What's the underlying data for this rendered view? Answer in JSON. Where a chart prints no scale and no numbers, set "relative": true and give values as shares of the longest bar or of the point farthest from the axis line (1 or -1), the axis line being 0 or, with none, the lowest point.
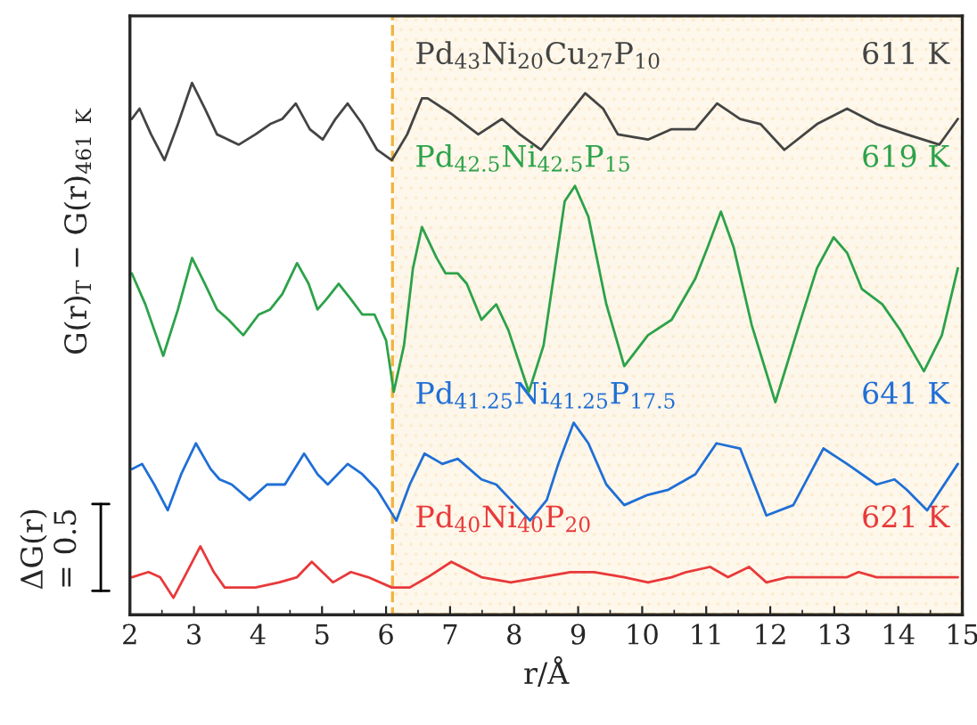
{
  "chart_data": {
    "type": "line",
    "relative": true,
    "xlabel": "r/Å",
    "ylabel": "G(r)$_{T}$ − G(r)$_{461 K}$",
    "xlim": [
      2,
      15
    ],
    "xticks": [
      2,
      3,
      4,
      5,
      6,
      7,
      8,
      9,
      10,
      11,
      12,
      13,
      14,
      15
    ],
    "tick_labels": "x",
    "grid": false,
    "legend": false,
    "marker": "none",
    "line_style": "solid",
    "bands": [
      {
        "axis": "x",
        "from": 6.1,
        "to": 15,
        "color": "#f2b33d"
      }
    ],
    "annotations": [
      "611 K",
      "619 K",
      "641 K",
      "621 K",
      "ΔG(r)\n= 0.5"
    ],
    "series": [
      {
        "name": "Pd$_{43}$Ni$_{20}$Cu$_{27}$P$_{10}$",
        "color": "#444444",
        "x": [
          2.03,
          2.15,
          2.33,
          2.54,
          2.75,
          2.97,
          3.17,
          3.36,
          3.7,
          3.96,
          4.19,
          4.38,
          4.59,
          4.81,
          5.01,
          5.21,
          5.4,
          5.63,
          5.86,
          6.09,
          6.33,
          6.56,
          6.65,
          7.02,
          7.44,
          7.81,
          8.09,
          8.42,
          8.79,
          9.11,
          9.39,
          9.62,
          10.09,
          10.46,
          10.83,
          11.17,
          11.53,
          11.85,
          12.22,
          12.73,
          13.2,
          13.66,
          14.13,
          14.64,
          14.93
        ],
        "values": [
          0.93,
          0.95,
          0.9,
          0.85,
          0.92,
          1.0,
          0.95,
          0.9,
          0.88,
          0.9,
          0.92,
          0.93,
          0.96,
          0.91,
          0.89,
          0.93,
          0.96,
          0.92,
          0.87,
          0.85,
          0.9,
          0.97,
          0.97,
          0.94,
          0.9,
          0.93,
          0.9,
          0.87,
          0.93,
          0.98,
          0.95,
          0.9,
          0.89,
          0.91,
          0.91,
          0.96,
          0.93,
          0.92,
          0.87,
          0.92,
          0.95,
          0.92,
          0.9,
          0.88,
          0.93
        ]
      },
      {
        "name": "Pd$_{42.5}$Ni$_{42.5}$P$_{15}$",
        "color": "#2ca24a",
        "x": [
          2.03,
          2.24,
          2.52,
          2.75,
          2.97,
          3.17,
          3.36,
          3.54,
          3.77,
          4.01,
          4.19,
          4.38,
          4.61,
          4.79,
          4.93,
          5.07,
          5.26,
          5.45,
          5.63,
          5.82,
          6.0,
          6.12,
          6.28,
          6.42,
          6.56,
          6.79,
          6.93,
          7.12,
          7.26,
          7.49,
          7.72,
          7.91,
          8.23,
          8.46,
          8.79,
          8.95,
          9.16,
          9.44,
          9.72,
          10.09,
          10.46,
          10.83,
          11.02,
          11.23,
          11.43,
          11.71,
          12.08,
          12.45,
          12.73,
          12.99,
          13.2,
          13.43,
          13.75,
          14.03,
          14.4,
          14.68,
          14.93
        ],
        "values": [
          0.63,
          0.57,
          0.47,
          0.56,
          0.66,
          0.61,
          0.56,
          0.54,
          0.51,
          0.55,
          0.56,
          0.59,
          0.65,
          0.61,
          0.56,
          0.58,
          0.61,
          0.58,
          0.55,
          0.55,
          0.5,
          0.4,
          0.49,
          0.64,
          0.72,
          0.66,
          0.63,
          0.63,
          0.61,
          0.54,
          0.57,
          0.52,
          0.4,
          0.49,
          0.77,
          0.8,
          0.74,
          0.57,
          0.45,
          0.51,
          0.54,
          0.62,
          0.68,
          0.75,
          0.68,
          0.53,
          0.38,
          0.53,
          0.64,
          0.7,
          0.67,
          0.6,
          0.57,
          0.52,
          0.44,
          0.51,
          0.64
        ]
      },
      {
        "name": "Pd$_{41.25}$Ni$_{41.25}$P$_{17.5}$",
        "color": "#1f6fd6",
        "x": [
          2.03,
          2.19,
          2.38,
          2.59,
          2.8,
          3.03,
          3.26,
          3.4,
          3.59,
          3.87,
          4.14,
          4.42,
          4.72,
          4.93,
          5.09,
          5.4,
          5.63,
          5.86,
          6.16,
          6.37,
          6.6,
          6.88,
          7.12,
          7.49,
          7.72,
          7.95,
          8.25,
          8.51,
          8.69,
          8.93,
          9.16,
          9.44,
          9.72,
          10.09,
          10.41,
          10.83,
          11.16,
          11.53,
          11.94,
          12.36,
          12.83,
          13.2,
          13.66,
          13.94,
          14.13,
          14.45,
          14.93
        ],
        "values": [
          0.25,
          0.26,
          0.22,
          0.17,
          0.24,
          0.3,
          0.25,
          0.23,
          0.22,
          0.19,
          0.22,
          0.22,
          0.28,
          0.24,
          0.22,
          0.26,
          0.24,
          0.21,
          0.15,
          0.22,
          0.28,
          0.26,
          0.27,
          0.23,
          0.22,
          0.19,
          0.15,
          0.19,
          0.26,
          0.34,
          0.3,
          0.22,
          0.18,
          0.2,
          0.21,
          0.24,
          0.3,
          0.29,
          0.16,
          0.18,
          0.29,
          0.26,
          0.22,
          0.23,
          0.21,
          0.17,
          0.26
        ]
      },
      {
        "name": "Pd$_{40}$Ni$_{40}$P$_{20}$",
        "color": "#e8393a",
        "x": [
          2.03,
          2.29,
          2.47,
          2.68,
          2.89,
          3.1,
          3.31,
          3.48,
          3.73,
          3.96,
          4.33,
          4.61,
          4.84,
          5.17,
          5.45,
          5.72,
          6.09,
          6.37,
          6.65,
          7.02,
          7.49,
          7.95,
          8.42,
          8.88,
          9.25,
          9.72,
          10.09,
          10.46,
          10.69,
          11.06,
          11.34,
          11.67,
          11.94,
          12.27,
          13.2,
          13.38,
          13.66,
          13.99,
          14.22,
          14.59,
          14.93
        ],
        "values": [
          0.04,
          0.05,
          0.04,
          0.0,
          0.05,
          0.1,
          0.05,
          0.02,
          0.02,
          0.02,
          0.03,
          0.04,
          0.07,
          0.03,
          0.05,
          0.04,
          0.02,
          0.02,
          0.04,
          0.07,
          0.04,
          0.03,
          0.04,
          0.05,
          0.05,
          0.04,
          0.03,
          0.04,
          0.05,
          0.06,
          0.04,
          0.06,
          0.03,
          0.04,
          0.04,
          0.05,
          0.04,
          0.04,
          0.04,
          0.04,
          0.04
        ]
      }
    ]
  }
}
